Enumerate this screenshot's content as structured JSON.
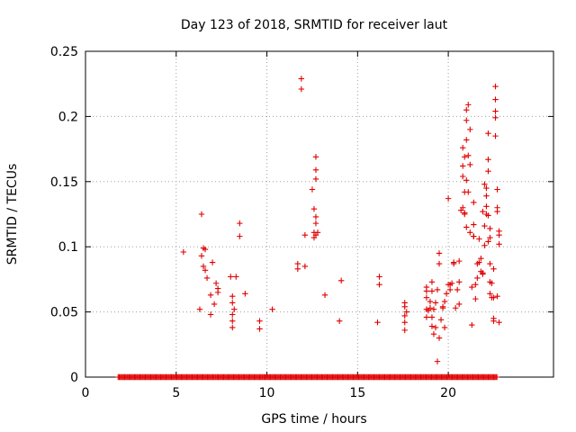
{
  "chart_data": {
    "type": "scatter",
    "title": "Day 123 of 2018, SRMTID for receiver laut",
    "xlabel": "GPS time / hours",
    "ylabel": "SRMTID / TECUs",
    "xlim": [
      0,
      25.8
    ],
    "ylim": [
      0,
      0.25
    ],
    "x_ticks": [
      0,
      5,
      10,
      15,
      20
    ],
    "x_tick_labels": [
      "0",
      "5",
      "10",
      "15",
      "20"
    ],
    "y_ticks": [
      0,
      0.05,
      0.1,
      0.15,
      0.2,
      0.25
    ],
    "y_tick_labels": [
      "0",
      "0.05",
      "0.1",
      "0.15",
      "0.2",
      "0.25"
    ],
    "grid": true,
    "marker": "+",
    "color": "#e00000",
    "baseline_zero": {
      "x_start": 1.8,
      "x_end": 22.7,
      "step": 0.06,
      "y": 0
    },
    "series": [
      {
        "name": "SRMTID",
        "points": [
          [
            5.4,
            0.096
          ],
          [
            6.3,
            0.052
          ],
          [
            6.4,
            0.125
          ],
          [
            6.4,
            0.093
          ],
          [
            6.5,
            0.099
          ],
          [
            6.5,
            0.085
          ],
          [
            6.6,
            0.098
          ],
          [
            6.6,
            0.082
          ],
          [
            6.7,
            0.076
          ],
          [
            6.9,
            0.063
          ],
          [
            6.9,
            0.048
          ],
          [
            7.0,
            0.088
          ],
          [
            7.1,
            0.056
          ],
          [
            7.2,
            0.072
          ],
          [
            7.3,
            0.065
          ],
          [
            7.3,
            0.068
          ],
          [
            8.0,
            0.077
          ],
          [
            8.1,
            0.062
          ],
          [
            8.1,
            0.057
          ],
          [
            8.1,
            0.048
          ],
          [
            8.1,
            0.043
          ],
          [
            8.1,
            0.038
          ],
          [
            8.2,
            0.052
          ],
          [
            8.3,
            0.077
          ],
          [
            8.5,
            0.118
          ],
          [
            8.5,
            0.108
          ],
          [
            8.8,
            0.064
          ],
          [
            9.6,
            0.043
          ],
          [
            9.6,
            0.037
          ],
          [
            10.3,
            0.052
          ],
          [
            11.7,
            0.087
          ],
          [
            11.7,
            0.083
          ],
          [
            11.9,
            0.229
          ],
          [
            11.9,
            0.221
          ],
          [
            12.1,
            0.085
          ],
          [
            12.1,
            0.109
          ],
          [
            12.5,
            0.144
          ],
          [
            12.6,
            0.129
          ],
          [
            12.6,
            0.111
          ],
          [
            12.6,
            0.107
          ],
          [
            12.7,
            0.169
          ],
          [
            12.7,
            0.159
          ],
          [
            12.7,
            0.152
          ],
          [
            12.7,
            0.123
          ],
          [
            12.7,
            0.118
          ],
          [
            12.7,
            0.109
          ],
          [
            12.8,
            0.111
          ],
          [
            13.2,
            0.063
          ],
          [
            14.0,
            0.043
          ],
          [
            14.1,
            0.074
          ],
          [
            16.1,
            0.042
          ],
          [
            16.2,
            0.077
          ],
          [
            16.2,
            0.071
          ],
          [
            17.6,
            0.057
          ],
          [
            17.6,
            0.054
          ],
          [
            17.6,
            0.047
          ],
          [
            17.6,
            0.042
          ],
          [
            17.6,
            0.036
          ],
          [
            17.7,
            0.05
          ],
          [
            18.8,
            0.069
          ],
          [
            18.8,
            0.066
          ],
          [
            18.8,
            0.061
          ],
          [
            18.8,
            0.052
          ],
          [
            18.8,
            0.046
          ],
          [
            18.9,
            0.051
          ],
          [
            19.0,
            0.058
          ],
          [
            19.0,
            0.053
          ],
          [
            19.1,
            0.073
          ],
          [
            19.1,
            0.066
          ],
          [
            19.1,
            0.046
          ],
          [
            19.1,
            0.039
          ],
          [
            19.2,
            0.033
          ],
          [
            19.2,
            0.052
          ],
          [
            19.3,
            0.038
          ],
          [
            19.3,
            0.057
          ],
          [
            19.4,
            0.012
          ],
          [
            19.4,
            0.067
          ],
          [
            19.5,
            0.095
          ],
          [
            19.5,
            0.03
          ],
          [
            19.5,
            0.087
          ],
          [
            19.6,
            0.044
          ],
          [
            19.7,
            0.053
          ],
          [
            19.7,
            0.054
          ],
          [
            19.8,
            0.038
          ],
          [
            19.8,
            0.058
          ],
          [
            19.9,
            0.064
          ],
          [
            20.0,
            0.137
          ],
          [
            20.0,
            0.071
          ],
          [
            20.1,
            0.067
          ],
          [
            20.1,
            0.071
          ],
          [
            20.2,
            0.072
          ],
          [
            20.3,
            0.087
          ],
          [
            20.3,
            0.088
          ],
          [
            20.4,
            0.053
          ],
          [
            20.5,
            0.067
          ],
          [
            20.6,
            0.089
          ],
          [
            20.6,
            0.073
          ],
          [
            20.6,
            0.056
          ],
          [
            20.7,
            0.128
          ],
          [
            20.8,
            0.162
          ],
          [
            20.8,
            0.154
          ],
          [
            20.8,
            0.176
          ],
          [
            20.8,
            0.13
          ],
          [
            20.9,
            0.125
          ],
          [
            20.9,
            0.142
          ],
          [
            20.9,
            0.169
          ],
          [
            20.9,
            0.126
          ],
          [
            21.0,
            0.151
          ],
          [
            21.0,
            0.182
          ],
          [
            21.0,
            0.205
          ],
          [
            21.0,
            0.197
          ],
          [
            21.0,
            0.115
          ],
          [
            21.1,
            0.142
          ],
          [
            21.1,
            0.17
          ],
          [
            21.1,
            0.209
          ],
          [
            21.2,
            0.19
          ],
          [
            21.2,
            0.111
          ],
          [
            21.2,
            0.163
          ],
          [
            21.3,
            0.069
          ],
          [
            21.3,
            0.04
          ],
          [
            21.4,
            0.108
          ],
          [
            21.4,
            0.134
          ],
          [
            21.4,
            0.117
          ],
          [
            21.4,
            0.108
          ],
          [
            21.5,
            0.071
          ],
          [
            21.5,
            0.06
          ],
          [
            21.6,
            0.087
          ],
          [
            21.6,
            0.076
          ],
          [
            21.7,
            0.088
          ],
          [
            21.7,
            0.106
          ],
          [
            21.8,
            0.091
          ],
          [
            21.8,
            0.081
          ],
          [
            21.9,
            0.127
          ],
          [
            21.9,
            0.079
          ],
          [
            21.9,
            0.08
          ],
          [
            22.0,
            0.148
          ],
          [
            22.0,
            0.116
          ],
          [
            22.0,
            0.101
          ],
          [
            22.1,
            0.145
          ],
          [
            22.1,
            0.131
          ],
          [
            22.1,
            0.125
          ],
          [
            22.1,
            0.139
          ],
          [
            22.2,
            0.187
          ],
          [
            22.2,
            0.167
          ],
          [
            22.2,
            0.158
          ],
          [
            22.2,
            0.104
          ],
          [
            22.2,
            0.124
          ],
          [
            22.3,
            0.114
          ],
          [
            22.3,
            0.107
          ],
          [
            22.3,
            0.087
          ],
          [
            22.3,
            0.073
          ],
          [
            22.3,
            0.064
          ],
          [
            22.4,
            0.072
          ],
          [
            22.4,
            0.061
          ],
          [
            22.5,
            0.083
          ],
          [
            22.5,
            0.061
          ],
          [
            22.5,
            0.045
          ],
          [
            22.5,
            0.043
          ],
          [
            22.6,
            0.185
          ],
          [
            22.6,
            0.223
          ],
          [
            22.6,
            0.213
          ],
          [
            22.6,
            0.204
          ],
          [
            22.6,
            0.199
          ],
          [
            22.7,
            0.144
          ],
          [
            22.7,
            0.13
          ],
          [
            22.7,
            0.127
          ],
          [
            22.8,
            0.112
          ],
          [
            22.8,
            0.109
          ],
          [
            22.8,
            0.102
          ],
          [
            22.8,
            0.042
          ],
          [
            22.7,
            0.062
          ]
        ]
      }
    ]
  }
}
